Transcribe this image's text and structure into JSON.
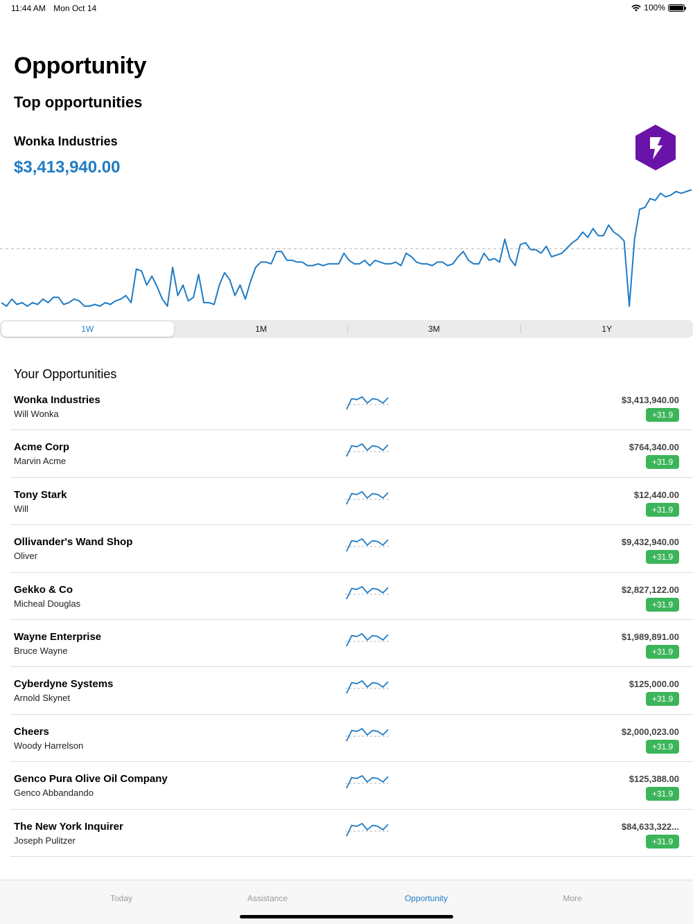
{
  "status_bar": {
    "time": "11:44 AM",
    "date": "Mon Oct 14",
    "battery": "100%"
  },
  "page_title": "Opportunity",
  "section_title": "Top opportunities",
  "top_opportunity": {
    "company": "Wonka Industries",
    "value": "$3,413,940.00",
    "badge_icon": "lightning-hexagon-icon",
    "badge_color": "#6a13a8",
    "chart_color": "#1f7bc4",
    "chart_series": [
      12,
      10,
      14,
      11,
      12,
      10,
      12,
      11,
      14,
      12,
      15,
      15,
      11,
      12,
      14,
      13,
      10,
      10,
      11,
      10,
      12,
      11,
      13,
      14,
      16,
      12,
      31,
      30,
      22,
      27,
      21,
      14,
      10,
      32,
      16,
      22,
      13,
      15,
      28,
      12,
      12,
      11,
      22,
      29,
      25,
      16,
      22,
      14,
      24,
      32,
      35,
      35,
      34,
      41,
      41,
      36,
      36,
      35,
      35,
      33,
      33,
      34,
      33,
      34,
      34,
      34,
      40,
      36,
      34,
      34,
      36,
      33,
      36,
      35,
      34,
      34,
      35,
      33,
      40,
      38,
      35,
      34,
      34,
      33,
      35,
      35,
      33,
      34,
      38,
      41,
      36,
      34,
      34,
      40,
      36,
      37,
      35,
      48,
      37,
      33,
      45,
      46,
      42,
      42,
      40,
      44,
      38,
      39,
      40,
      43,
      46,
      48,
      52,
      49,
      54,
      50,
      50,
      56,
      52,
      50,
      47,
      10,
      48,
      65,
      66,
      71,
      70,
      74,
      72,
      73,
      75,
      74,
      75,
      76
    ],
    "chart_series_ticks_note": ""
  },
  "segments": {
    "options": [
      "1W",
      "1M",
      "3M",
      "1Y"
    ],
    "selected": "1W"
  },
  "list_heading": "Your Opportunities",
  "opportunities": [
    {
      "name": "Wonka Industries",
      "contact": "Will Wonka",
      "amount": "$3,413,940.00",
      "change": "+31.9"
    },
    {
      "name": "Acme Corp",
      "contact": "Marvin Acme",
      "amount": "$764,340.00",
      "change": "+31.9"
    },
    {
      "name": "Tony Stark",
      "contact": "Will",
      "amount": "$12,440.00",
      "change": "+31.9"
    },
    {
      "name": "Ollivander's Wand Shop",
      "contact": "Oliver",
      "amount": "$9,432,940.00",
      "change": "+31.9"
    },
    {
      "name": "Gekko & Co",
      "contact": "Micheal Douglas",
      "amount": "$2,827,122.00",
      "change": "+31.9"
    },
    {
      "name": "Wayne Enterprise",
      "contact": "Bruce Wayne",
      "amount": "$1,989,891.00",
      "change": "+31.9"
    },
    {
      "name": "Cyberdyne Systems",
      "contact": "Arnold Skynet",
      "amount": "$125,000.00",
      "change": "+31.9"
    },
    {
      "name": "Cheers",
      "contact": "Woody Harrelson",
      "amount": "$2,000,023.00",
      "change": "+31.9"
    },
    {
      "name": "Genco Pura Olive Oil Company",
      "contact": "Genco Abbandando",
      "amount": "$125,388.00",
      "change": "+31.9"
    },
    {
      "name": "The New York Inquirer",
      "contact": "Joseph Pulitzer",
      "amount": "$84,633,322...",
      "change": "+31.9"
    }
  ],
  "sparkline_series": [
    2,
    14,
    13,
    16,
    9,
    14,
    13,
    9,
    15
  ],
  "change_badge_color": "#3cb55a",
  "tabs": [
    {
      "label": "Today",
      "active": false
    },
    {
      "label": "Assistance",
      "active": false
    },
    {
      "label": "Opportunity",
      "active": true
    },
    {
      "label": "More",
      "active": false
    }
  ]
}
